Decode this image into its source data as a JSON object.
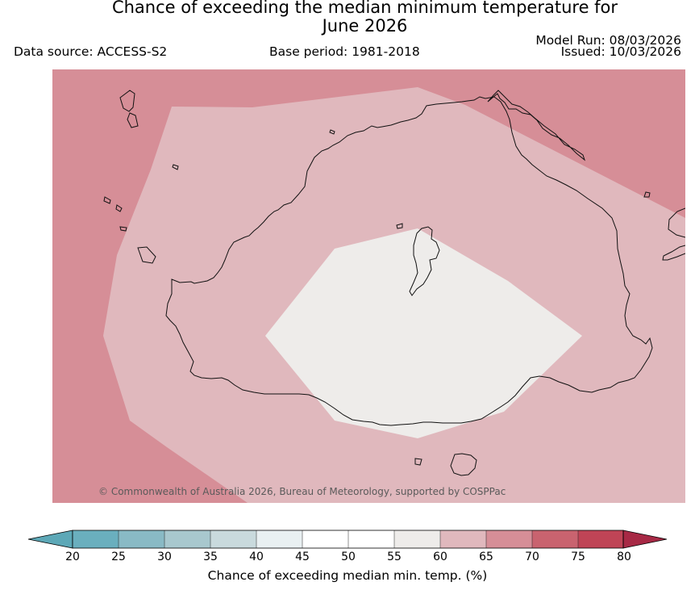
{
  "header": {
    "title_line1": "Chance of exceeding the median minimum temperature for",
    "title_line2": "June 2026",
    "data_source": "Data source: ACCESS-S2",
    "base_period": "Base period: 1981-2018",
    "model_run": "Model Run: 08/03/2026",
    "issued": "Issued: 10/03/2026"
  },
  "map": {
    "region": "Australia",
    "copyright": "© Commonwealth of Australia 2026, Bureau of Meteorology, supported by COSPPac",
    "zones": [
      {
        "name": "outer",
        "category": "65-70",
        "color": "#d68e97"
      },
      {
        "name": "middle",
        "category": "60-65",
        "color": "#e0b8bd"
      },
      {
        "name": "inner",
        "category": "55-60",
        "color": "#eeecea"
      }
    ]
  },
  "colorbar": {
    "label": "Chance of exceeding median min. temp. (%)",
    "ticks": [
      "20",
      "25",
      "30",
      "35",
      "40",
      "45",
      "50",
      "55",
      "60",
      "65",
      "70",
      "75",
      "80"
    ],
    "under_color": "#5da8b7",
    "over_color": "#a72945",
    "colors": [
      "#6aafbe",
      "#89bac5",
      "#a8c8ce",
      "#c9dadd",
      "#e9f0f2",
      "#ffffff",
      "#ffffff",
      "#eeecea",
      "#e0b8bd",
      "#d68e97",
      "#c9636f",
      "#bf4456"
    ]
  }
}
